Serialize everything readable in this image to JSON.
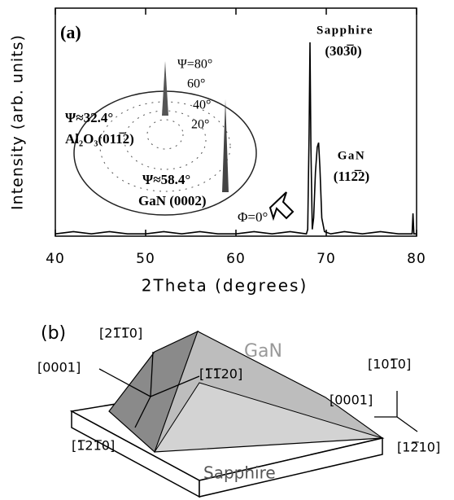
{
  "chart_data": {
    "type": "line",
    "x_label": "2Theta (degrees)",
    "y_label": "Intensity (arb. units)",
    "xlim": [
      40,
      80
    ],
    "xticks": [
      40,
      50,
      60,
      70,
      80
    ],
    "ylim": [
      0,
      100
    ],
    "color": "#000000",
    "x": [
      40,
      42,
      44,
      46,
      48,
      50,
      52,
      54,
      56,
      58,
      60,
      62,
      64,
      66,
      67.8,
      67.95,
      68.1,
      68.2,
      68.3,
      68.45,
      68.6,
      68.8,
      69.0,
      69.15,
      69.3,
      69.5,
      69.8,
      70.5,
      72,
      74,
      76,
      78,
      79.5,
      79.6,
      79.7,
      80
    ],
    "values": [
      1,
      2,
      1,
      2,
      1,
      1,
      2,
      1,
      2,
      1,
      1,
      2,
      1,
      2,
      1,
      3,
      45,
      85,
      40,
      3,
      8,
      28,
      39,
      41,
      30,
      8,
      2,
      1,
      2,
      1,
      2,
      1,
      1,
      10,
      1,
      1
    ],
    "annotations": {
      "panel": "(a)",
      "sapphire": "Sapphire",
      "sapphire_plane": "(303̅0)",
      "gan": "GaN",
      "gan_plane": "(112̅2)",
      "psi80": "Ψ=80°",
      "psi60": "60°",
      "psi40": "40°",
      "psi20": "20°",
      "psi_al": "Ψ≈32.4°",
      "al_plane": "Al₂O₃(011̅2)",
      "psi_gan": "Ψ≈58.4°",
      "gan_pole": "GaN (0002)",
      "phi": "Φ=0°"
    }
  },
  "diagram": {
    "panel": "(b)",
    "gan": "GaN",
    "sapphire": "Sapphire",
    "dir_2110": "[21̅1̅0]",
    "dir_0001_left": "[0001]",
    "dir_1120": "[1̅1̅20]",
    "dir_1010": "[101̅0]",
    "dir_0001_right": "[0001]",
    "dir_1210_left": "[1̅21̅0]",
    "dir_1210_right": "[12̅10]"
  }
}
